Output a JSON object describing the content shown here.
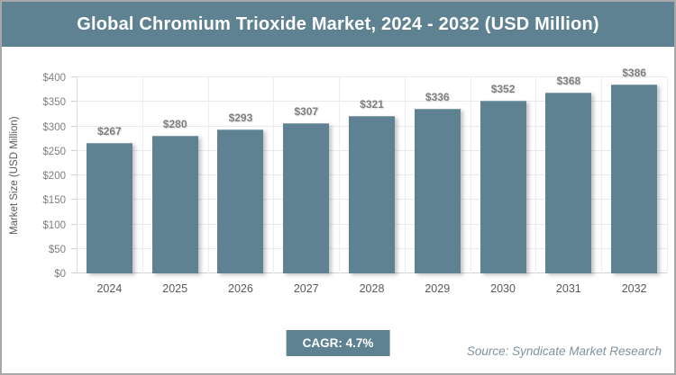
{
  "header": {
    "title": "Global Chromium Trioxide Market, 2024 - 2032 (USD Million)"
  },
  "chart_data": {
    "type": "bar",
    "categories": [
      "2024",
      "2025",
      "2026",
      "2027",
      "2028",
      "2029",
      "2030",
      "2031",
      "2032"
    ],
    "values": [
      267,
      280,
      293,
      307,
      321,
      336,
      352,
      368,
      386
    ],
    "value_labels": [
      "$267",
      "$280",
      "$293",
      "$307",
      "$321",
      "$336",
      "$352",
      "$368",
      "$386"
    ],
    "title": "Global Chromium Trioxide Market, 2024 - 2032 (USD Million)",
    "xlabel": "",
    "ylabel": "Market Size (USD Million)",
    "ylim": [
      0,
      400
    ],
    "ytick_values": [
      0,
      50,
      100,
      150,
      200,
      250,
      300,
      350,
      400
    ],
    "ytick_labels": [
      "$0",
      "$50",
      "$100",
      "$150",
      "$200",
      "$250",
      "$300",
      "$350",
      "$400"
    ],
    "grid": true,
    "legend": "none",
    "bar_color": "#5e8292"
  },
  "footer": {
    "cagr_label": "CAGR: 4.7%",
    "source": "Source: Syndicate Market Research"
  },
  "colors": {
    "accent": "#5e8292",
    "frame_border": "#a8a8a8",
    "value_label": "#7f7f7f",
    "tick_label": "#7f7f7f",
    "category_label": "#595959",
    "source_text": "#7f929e",
    "gridline": "#e9e9e9"
  }
}
